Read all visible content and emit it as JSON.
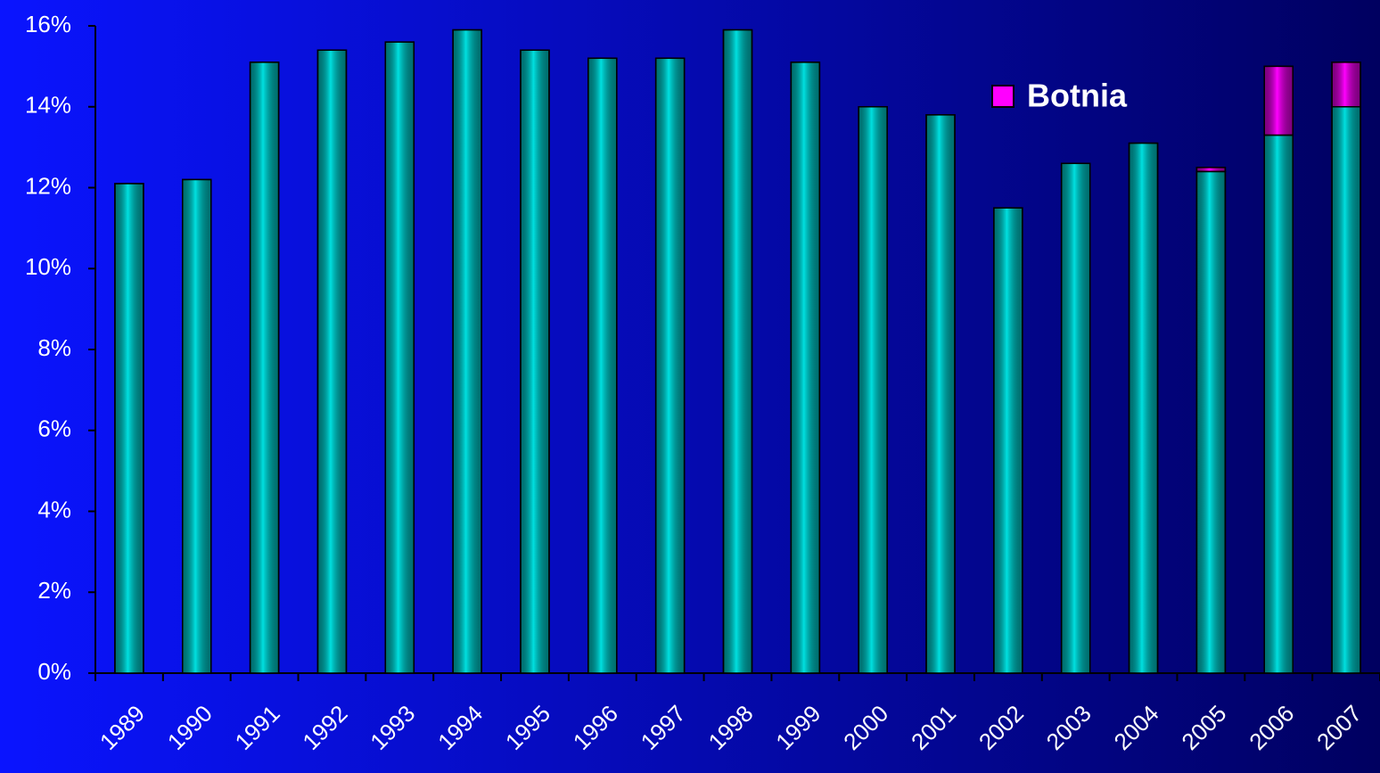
{
  "chart_data": {
    "type": "stacked_bar",
    "categories": [
      "1989",
      "1990",
      "1991",
      "1992",
      "1993",
      "1994",
      "1995",
      "1996",
      "1997",
      "1998",
      "1999",
      "2000",
      "2001",
      "2002",
      "2003",
      "2004",
      "2005",
      "2006",
      "2007"
    ],
    "series": [
      {
        "color": "#00e0e0",
        "values": [
          12.1,
          12.2,
          15.1,
          15.4,
          15.6,
          15.9,
          15.4,
          15.2,
          15.2,
          15.9,
          15.1,
          14.0,
          13.8,
          11.5,
          12.6,
          13.1,
          12.4,
          13.3,
          14.0
        ]
      },
      {
        "name": "Botnia",
        "color": "#ff00ff",
        "values": [
          0,
          0,
          0,
          0,
          0,
          0,
          0,
          0,
          0,
          0,
          0,
          0,
          0,
          0,
          0,
          0,
          0.1,
          1.7,
          1.1
        ]
      }
    ],
    "ylim": [
      0,
      16
    ],
    "yticks": [
      {
        "value": 0,
        "label": "0%"
      },
      {
        "value": 2,
        "label": "2%"
      },
      {
        "value": 4,
        "label": "4%"
      },
      {
        "value": 6,
        "label": "6%"
      },
      {
        "value": 8,
        "label": "8%"
      },
      {
        "value": 10,
        "label": "10%"
      },
      {
        "value": 12,
        "label": "12%"
      },
      {
        "value": 14,
        "label": "14%"
      },
      {
        "value": 16,
        "label": "16%"
      }
    ],
    "legend": "top-right"
  }
}
